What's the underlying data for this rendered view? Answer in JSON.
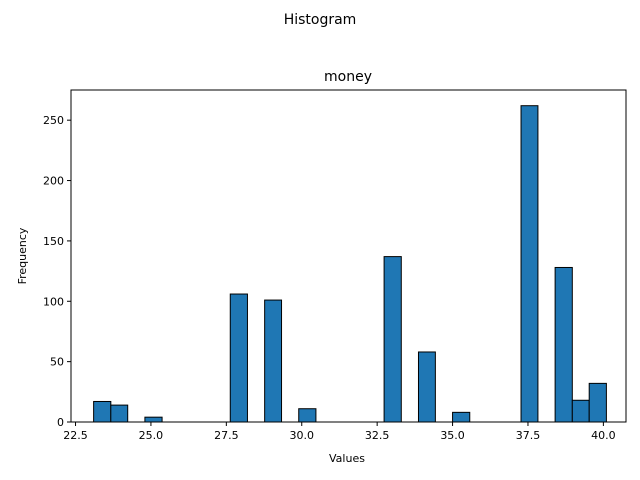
{
  "chart_data": {
    "type": "bar",
    "suptitle": "Histogram",
    "title": "money",
    "xlabel": "Values",
    "ylabel": "Frequency",
    "xlim": [
      22.35,
      40.75
    ],
    "ylim": [
      0,
      275
    ],
    "bar_color": "#1f77b4",
    "edge_color": "#000000",
    "xticks": [
      22.5,
      25.0,
      27.5,
      30.0,
      32.5,
      35.0,
      37.5,
      40.0
    ],
    "xtick_labels": [
      "22.5",
      "25.0",
      "27.5",
      "30.0",
      "32.5",
      "35.0",
      "37.5",
      "40.0"
    ],
    "yticks": [
      0,
      50,
      100,
      150,
      200,
      250
    ],
    "ytick_labels": [
      "0",
      "50",
      "100",
      "150",
      "200",
      "250"
    ],
    "bins": [
      {
        "x0": 23.1,
        "x1": 23.67,
        "count": 17
      },
      {
        "x0": 23.67,
        "x1": 24.23,
        "count": 14
      },
      {
        "x0": 24.8,
        "x1": 25.37,
        "count": 4
      },
      {
        "x0": 27.63,
        "x1": 28.2,
        "count": 106
      },
      {
        "x0": 28.77,
        "x1": 29.33,
        "count": 101
      },
      {
        "x0": 29.9,
        "x1": 30.47,
        "count": 11
      },
      {
        "x0": 32.73,
        "x1": 33.3,
        "count": 137
      },
      {
        "x0": 33.87,
        "x1": 34.43,
        "count": 58
      },
      {
        "x0": 35.0,
        "x1": 35.57,
        "count": 8
      },
      {
        "x0": 37.27,
        "x1": 37.83,
        "count": 262
      },
      {
        "x0": 38.4,
        "x1": 38.97,
        "count": 128
      },
      {
        "x0": 38.97,
        "x1": 39.53,
        "count": 18
      },
      {
        "x0": 39.53,
        "x1": 40.1,
        "count": 32
      }
    ]
  }
}
